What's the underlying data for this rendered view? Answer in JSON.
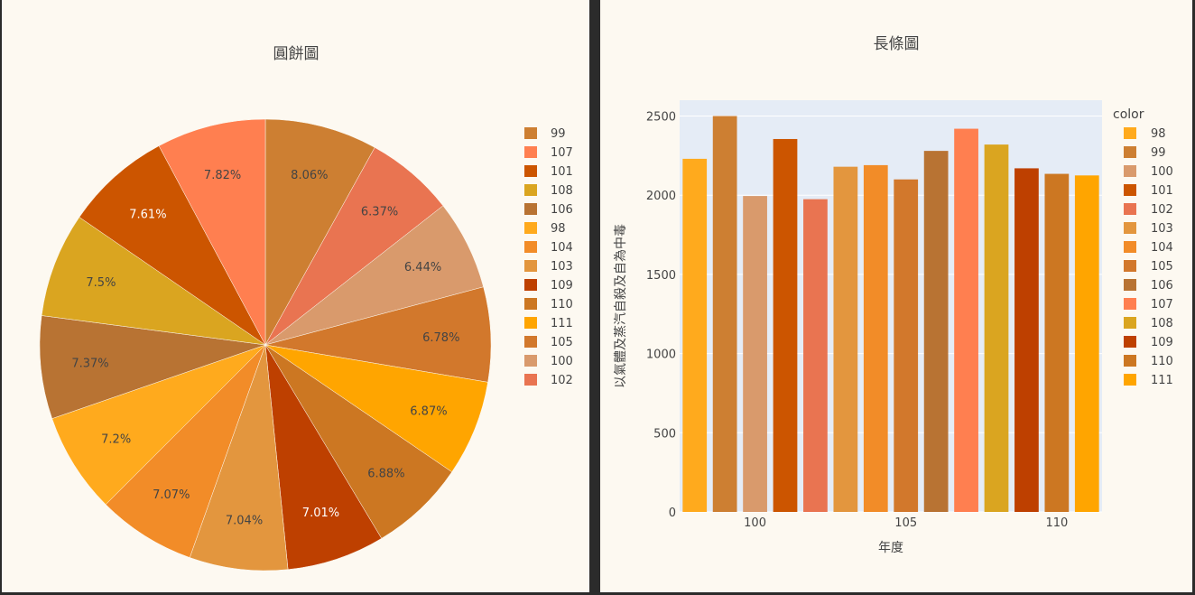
{
  "chart_data": [
    {
      "type": "pie",
      "title": "圓餅圖",
      "legend_position": "right",
      "slices": [
        {
          "label": "99",
          "pct": 8.06,
          "display": "8.06%",
          "color": "#cd7f32",
          "text_color": "#444444"
        },
        {
          "label": "102",
          "pct": 6.37,
          "display": "6.37%",
          "color": "#e97451",
          "text_color": "#444444"
        },
        {
          "label": "100",
          "pct": 6.44,
          "display": "6.44%",
          "color": "#d99a6c",
          "text_color": "#444444"
        },
        {
          "label": "105",
          "pct": 6.78,
          "display": "6.78%",
          "color": "#d2782c",
          "text_color": "#444444"
        },
        {
          "label": "111",
          "pct": 6.87,
          "display": "6.87%",
          "color": "#ffa500",
          "text_color": "#444444"
        },
        {
          "label": "110",
          "pct": 6.88,
          "display": "6.88%",
          "color": "#cc7722",
          "text_color": "#444444"
        },
        {
          "label": "109",
          "pct": 7.01,
          "display": "7.01%",
          "color": "#be4000",
          "text_color": "#ffffff"
        },
        {
          "label": "103",
          "pct": 7.04,
          "display": "7.04%",
          "color": "#e3963e",
          "text_color": "#444444"
        },
        {
          "label": "104",
          "pct": 7.07,
          "display": "7.07%",
          "color": "#f28c28",
          "text_color": "#444444"
        },
        {
          "label": "98",
          "pct": 7.2,
          "display": "7.2%",
          "color": "#ffaa1d",
          "text_color": "#444444"
        },
        {
          "label": "106",
          "pct": 7.37,
          "display": "7.37%",
          "color": "#b87333",
          "text_color": "#444444"
        },
        {
          "label": "108",
          "pct": 7.5,
          "display": "7.5%",
          "color": "#daa520",
          "text_color": "#444444"
        },
        {
          "label": "101",
          "pct": 7.61,
          "display": "7.61%",
          "color": "#cc5500",
          "text_color": "#ffffff"
        },
        {
          "label": "107",
          "pct": 7.82,
          "display": "7.82%",
          "color": "#ff7f50",
          "text_color": "#444444"
        }
      ],
      "legend": [
        "99",
        "107",
        "101",
        "108",
        "106",
        "98",
        "104",
        "103",
        "109",
        "110",
        "111",
        "105",
        "100",
        "102"
      ]
    },
    {
      "type": "bar",
      "title": "長條圖",
      "xlabel": "年度",
      "ylabel": "以氣體及蒸汽自殺及自為中毒",
      "legend_title": "color",
      "legend_position": "right",
      "grid": true,
      "ylim": [
        0,
        2600
      ],
      "yticks": [
        0,
        500,
        1000,
        1500,
        2000,
        2500
      ],
      "xticks": [
        100,
        105,
        110
      ],
      "categories": [
        98,
        99,
        100,
        101,
        102,
        103,
        104,
        105,
        106,
        107,
        108,
        109,
        110,
        111
      ],
      "values": [
        2230,
        2500,
        1995,
        2355,
        1975,
        2180,
        2190,
        2100,
        2280,
        2420,
        2320,
        2170,
        2135,
        2125
      ],
      "colors": [
        "#ffaa1d",
        "#cd7f32",
        "#d99a6c",
        "#cc5500",
        "#e97451",
        "#e3963e",
        "#f28c28",
        "#d2782c",
        "#b87333",
        "#ff7f50",
        "#daa520",
        "#be4000",
        "#cc7722",
        "#ffa500"
      ]
    }
  ]
}
